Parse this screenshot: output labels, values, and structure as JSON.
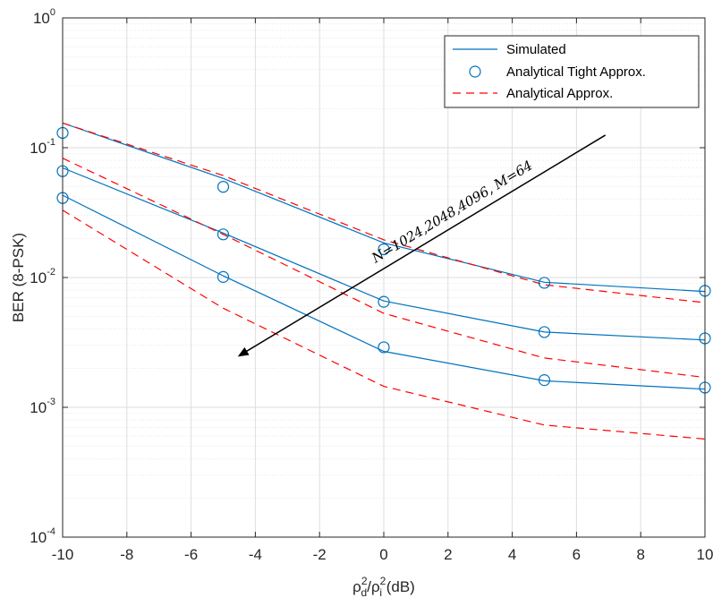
{
  "chart_data": {
    "type": "line",
    "yscale": "log",
    "xlabel_parts": {
      "rho": "ρ",
      "sup": "2",
      "sub_d": "d",
      "slash": "/",
      "sub_i": "i",
      "units": " (dB)"
    },
    "ylabel": "BER (8-PSK)",
    "xlim": [
      -10,
      10
    ],
    "ylim": [
      0.0001,
      1
    ],
    "xticks": [
      -10,
      -8,
      -6,
      -4,
      -2,
      0,
      2,
      4,
      6,
      8,
      10
    ],
    "yticks": [
      {
        "value": 1,
        "base": "10",
        "exp": "0"
      },
      {
        "value": 0.1,
        "base": "10",
        "exp": "-1"
      },
      {
        "value": 0.01,
        "base": "10",
        "exp": "-2"
      },
      {
        "value": 0.001,
        "base": "10",
        "exp": "-3"
      },
      {
        "value": 0.0001,
        "base": "10",
        "exp": "-4"
      }
    ],
    "grid": true,
    "minor_grid": true,
    "legend_position": "top-right",
    "legend": [
      {
        "label": "Simulated",
        "style": "solid-line"
      },
      {
        "label": "Analytical Tight Approx.",
        "style": "circle-marker"
      },
      {
        "label": "Analytical Approx.",
        "style": "dashed-line"
      }
    ],
    "colors": {
      "simulated": "#0072BD",
      "tight": "#0072BD",
      "approx": "#FF0000",
      "grid": "#e0e0e0",
      "axis": "#262626"
    },
    "x": [
      -10,
      -5,
      0,
      5,
      10
    ],
    "series": [
      {
        "name": "Simulated (N=1024)",
        "kind": "simulated",
        "values": [
          0.155,
          0.058,
          0.0185,
          0.0092,
          0.0078
        ]
      },
      {
        "name": "Analytical Tight Approx. (N=1024)",
        "kind": "tight",
        "values": [
          0.13,
          0.05,
          0.0165,
          0.0091,
          0.0079
        ]
      },
      {
        "name": "Analytical Approx. (N=1024)",
        "kind": "approx",
        "values": [
          0.155,
          0.061,
          0.0195,
          0.0088,
          0.0064
        ]
      },
      {
        "name": "Simulated (N=2048)",
        "kind": "simulated",
        "values": [
          0.07,
          0.022,
          0.0066,
          0.0038,
          0.0033
        ]
      },
      {
        "name": "Analytical Tight Approx. (N=2048)",
        "kind": "tight",
        "values": [
          0.066,
          0.0215,
          0.0065,
          0.0038,
          0.0034
        ]
      },
      {
        "name": "Analytical Approx. (N=2048)",
        "kind": "approx",
        "values": [
          0.083,
          0.0215,
          0.0053,
          0.0024,
          0.0017
        ]
      },
      {
        "name": "Simulated (N=4096)",
        "kind": "simulated",
        "values": [
          0.043,
          0.0103,
          0.0027,
          0.0016,
          0.00138
        ]
      },
      {
        "name": "Analytical Tight Approx. (N=4096)",
        "kind": "tight",
        "values": [
          0.041,
          0.0101,
          0.0029,
          0.00162,
          0.00142
        ]
      },
      {
        "name": "Analytical Approx. (N=4096)",
        "kind": "approx",
        "values": [
          0.033,
          0.0058,
          0.00145,
          0.00073,
          0.00057
        ]
      }
    ],
    "annotation": {
      "text": "N=1024,2048,4096, M=64",
      "arrow_from": {
        "x": 6.9,
        "y": 0.125
      },
      "arrow_to": {
        "x": -4.5,
        "y": 0.0025
      }
    }
  }
}
